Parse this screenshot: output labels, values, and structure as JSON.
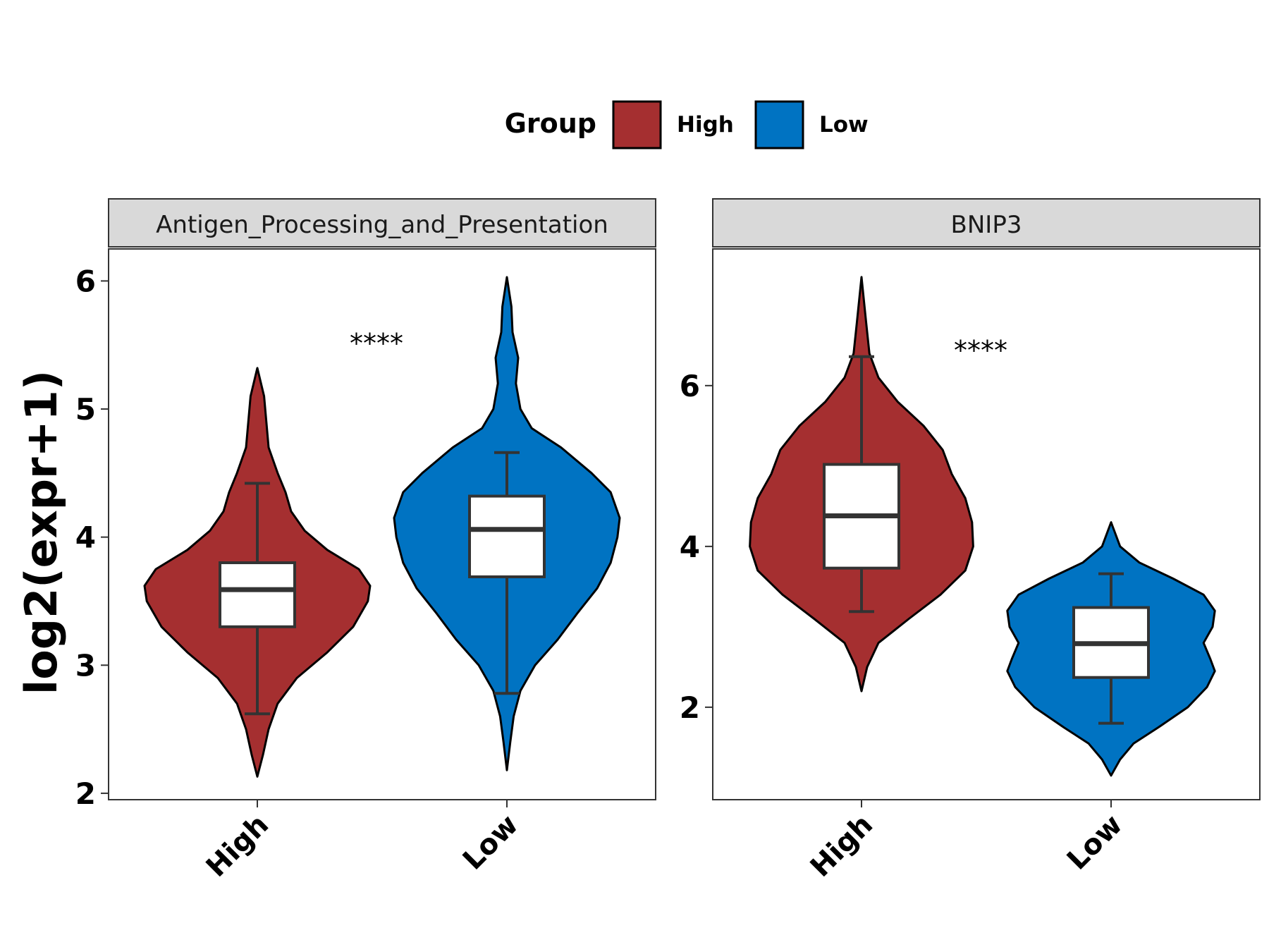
{
  "legend": {
    "title": "Group",
    "items": [
      {
        "label": "High",
        "color": "#A52F30"
      },
      {
        "label": "Low",
        "color": "#0073C2"
      }
    ]
  },
  "y_axis_label": "log2(expr+1)",
  "chart_data": {
    "type": "violin",
    "ylabel": "log2(expr+1)",
    "legend_title": "Group",
    "legend_position": "top",
    "categories": [
      "High",
      "Low"
    ],
    "panels": [
      {
        "title": "Antigen_Processing_and_Presentation",
        "ylim": [
          1.95,
          6.25
        ],
        "yticks": [
          2,
          3,
          4,
          5,
          6
        ],
        "significance": "****",
        "significance_y": 5.55,
        "groups": [
          {
            "name": "High",
            "color": "#A52F30",
            "box": {
              "whisker_low": 2.62,
              "q1": 3.3,
              "median": 3.59,
              "q3": 3.8,
              "whisker_high": 4.42
            },
            "violin": {
              "min": 2.13,
              "max": 5.32,
              "profile": [
                [
                  2.13,
                  0.0
                ],
                [
                  2.3,
                  0.05
                ],
                [
                  2.5,
                  0.1
                ],
                [
                  2.7,
                  0.18
                ],
                [
                  2.9,
                  0.35
                ],
                [
                  3.1,
                  0.62
                ],
                [
                  3.3,
                  0.85
                ],
                [
                  3.5,
                  0.98
                ],
                [
                  3.62,
                  1.0
                ],
                [
                  3.75,
                  0.9
                ],
                [
                  3.9,
                  0.62
                ],
                [
                  4.05,
                  0.42
                ],
                [
                  4.2,
                  0.3
                ],
                [
                  4.35,
                  0.25
                ],
                [
                  4.5,
                  0.18
                ],
                [
                  4.7,
                  0.1
                ],
                [
                  4.9,
                  0.08
                ],
                [
                  5.1,
                  0.06
                ],
                [
                  5.32,
                  0.0
                ]
              ]
            }
          },
          {
            "name": "Low",
            "color": "#0073C2",
            "box": {
              "whisker_low": 2.78,
              "q1": 3.69,
              "median": 4.06,
              "q3": 4.32,
              "whisker_high": 4.66
            },
            "violin": {
              "min": 2.18,
              "max": 6.03,
              "profile": [
                [
                  2.18,
                  0.0
                ],
                [
                  2.4,
                  0.03
                ],
                [
                  2.6,
                  0.06
                ],
                [
                  2.8,
                  0.12
                ],
                [
                  3.0,
                  0.25
                ],
                [
                  3.2,
                  0.45
                ],
                [
                  3.4,
                  0.62
                ],
                [
                  3.6,
                  0.8
                ],
                [
                  3.8,
                  0.92
                ],
                [
                  4.0,
                  0.98
                ],
                [
                  4.15,
                  1.0
                ],
                [
                  4.35,
                  0.92
                ],
                [
                  4.5,
                  0.75
                ],
                [
                  4.7,
                  0.48
                ],
                [
                  4.85,
                  0.22
                ],
                [
                  5.0,
                  0.12
                ],
                [
                  5.2,
                  0.08
                ],
                [
                  5.4,
                  0.1
                ],
                [
                  5.6,
                  0.05
                ],
                [
                  5.8,
                  0.04
                ],
                [
                  6.03,
                  0.0
                ]
              ]
            }
          }
        ]
      },
      {
        "title": "BNIP3",
        "ylim": [
          0.85,
          7.7
        ],
        "yticks": [
          2,
          4,
          6
        ],
        "significance": "****",
        "significance_y": 6.5,
        "groups": [
          {
            "name": "High",
            "color": "#A52F30",
            "box": {
              "whisker_low": 3.19,
              "q1": 3.73,
              "median": 4.38,
              "q3": 5.02,
              "whisker_high": 6.36
            },
            "violin": {
              "min": 2.2,
              "max": 7.35,
              "profile": [
                [
                  2.2,
                  0.0
                ],
                [
                  2.5,
                  0.05
                ],
                [
                  2.8,
                  0.15
                ],
                [
                  3.1,
                  0.42
                ],
                [
                  3.4,
                  0.7
                ],
                [
                  3.7,
                  0.92
                ],
                [
                  4.0,
                  0.99
                ],
                [
                  4.3,
                  0.98
                ],
                [
                  4.6,
                  0.92
                ],
                [
                  4.9,
                  0.8
                ],
                [
                  5.2,
                  0.72
                ],
                [
                  5.5,
                  0.55
                ],
                [
                  5.8,
                  0.32
                ],
                [
                  6.1,
                  0.15
                ],
                [
                  6.4,
                  0.07
                ],
                [
                  6.8,
                  0.04
                ],
                [
                  7.35,
                  0.0
                ]
              ]
            }
          },
          {
            "name": "Low",
            "color": "#0073C2",
            "box": {
              "whisker_low": 1.8,
              "q1": 2.37,
              "median": 2.79,
              "q3": 3.24,
              "whisker_high": 3.66
            },
            "violin": {
              "min": 1.15,
              "max": 4.3,
              "profile": [
                [
                  1.15,
                  0.0
                ],
                [
                  1.35,
                  0.08
                ],
                [
                  1.55,
                  0.2
                ],
                [
                  1.75,
                  0.42
                ],
                [
                  2.0,
                  0.68
                ],
                [
                  2.25,
                  0.85
                ],
                [
                  2.45,
                  0.92
                ],
                [
                  2.6,
                  0.88
                ],
                [
                  2.8,
                  0.82
                ],
                [
                  3.0,
                  0.9
                ],
                [
                  3.2,
                  0.92
                ],
                [
                  3.4,
                  0.82
                ],
                [
                  3.6,
                  0.55
                ],
                [
                  3.8,
                  0.25
                ],
                [
                  4.0,
                  0.08
                ],
                [
                  4.3,
                  0.0
                ]
              ]
            }
          }
        ]
      }
    ]
  }
}
